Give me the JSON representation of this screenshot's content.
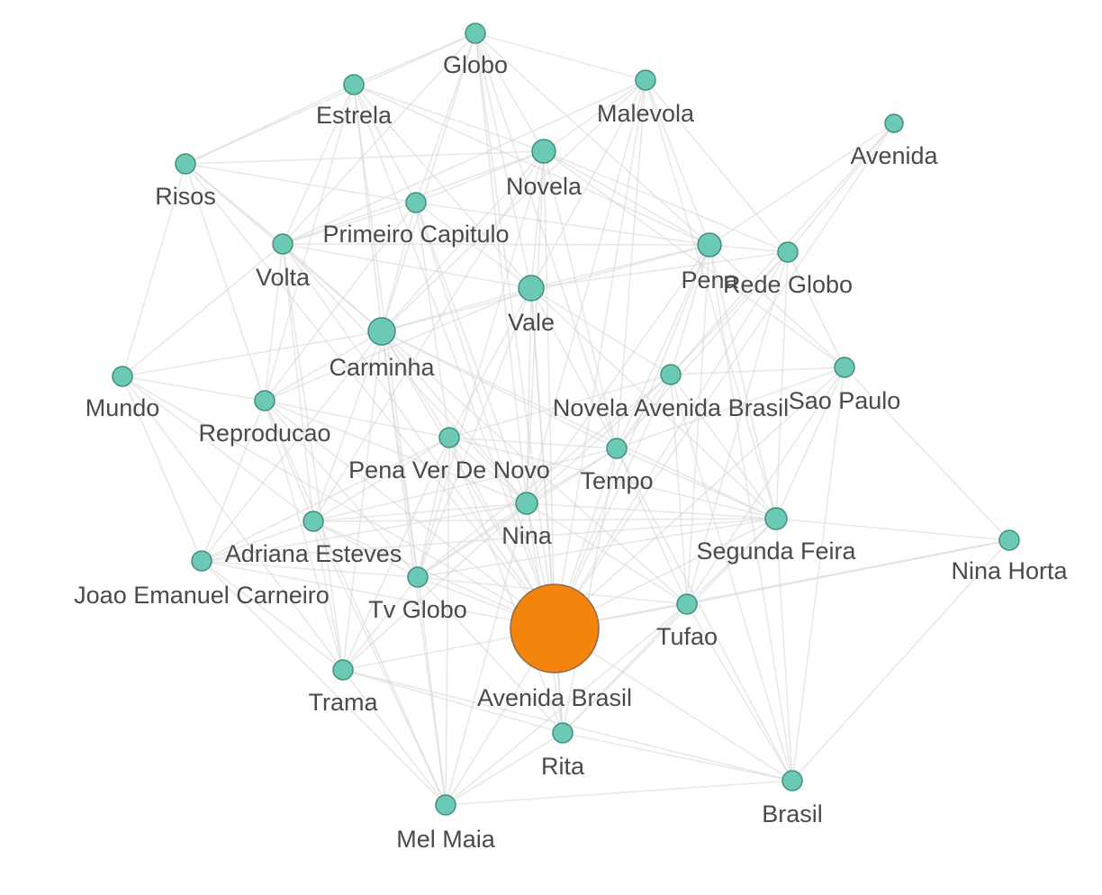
{
  "graph": {
    "colors": {
      "node": "#6cc9b4",
      "node_stroke": "#3f8f80",
      "hub": "#f5840f",
      "edge": "#d6d6d6",
      "label": "#4a4a4a"
    },
    "hub": "Avenida Brasil",
    "nodes": [
      {
        "id": "globo",
        "label": "Globo"
      },
      {
        "id": "estrela",
        "label": "Estrela"
      },
      {
        "id": "malevola",
        "label": "Malevola"
      },
      {
        "id": "avenida",
        "label": "Avenida"
      },
      {
        "id": "risos",
        "label": "Risos"
      },
      {
        "id": "novela",
        "label": "Novela"
      },
      {
        "id": "primeiro-capitulo",
        "label": "Primeiro Capitulo"
      },
      {
        "id": "volta",
        "label": "Volta"
      },
      {
        "id": "pena",
        "label": "Pena"
      },
      {
        "id": "rede-globo",
        "label": "Rede Globo"
      },
      {
        "id": "vale",
        "label": "Vale"
      },
      {
        "id": "carminha",
        "label": "Carminha"
      },
      {
        "id": "mundo",
        "label": "Mundo"
      },
      {
        "id": "reproducao",
        "label": "Reproducao"
      },
      {
        "id": "novela-avenida-brasil",
        "label": "Novela Avenida Brasil"
      },
      {
        "id": "sao-paulo",
        "label": "Sao Paulo"
      },
      {
        "id": "pena-ver-de-novo",
        "label": "Pena Ver De Novo"
      },
      {
        "id": "tempo",
        "label": "Tempo"
      },
      {
        "id": "nina",
        "label": "Nina"
      },
      {
        "id": "adriana-esteves",
        "label": "Adriana Esteves"
      },
      {
        "id": "segunda-feira",
        "label": "Segunda Feira"
      },
      {
        "id": "nina-horta",
        "label": "Nina Horta"
      },
      {
        "id": "joao-emanuel-carneiro",
        "label": "Joao Emanuel Carneiro"
      },
      {
        "id": "tv-globo",
        "label": "Tv Globo"
      },
      {
        "id": "tufao",
        "label": "Tufao"
      },
      {
        "id": "avenida-brasil",
        "label": "Avenida Brasil"
      },
      {
        "id": "trama",
        "label": "Trama"
      },
      {
        "id": "rita",
        "label": "Rita"
      },
      {
        "id": "brasil",
        "label": "Brasil"
      },
      {
        "id": "mel-maia",
        "label": "Mel Maia"
      }
    ],
    "edges": [
      [
        "avenida-brasil",
        "globo"
      ],
      [
        "avenida-brasil",
        "estrela"
      ],
      [
        "avenida-brasil",
        "malevola"
      ],
      [
        "avenida-brasil",
        "risos"
      ],
      [
        "avenida-brasil",
        "novela"
      ],
      [
        "avenida-brasil",
        "primeiro-capitulo"
      ],
      [
        "avenida-brasil",
        "volta"
      ],
      [
        "avenida-brasil",
        "pena"
      ],
      [
        "avenida-brasil",
        "rede-globo"
      ],
      [
        "avenida-brasil",
        "vale"
      ],
      [
        "avenida-brasil",
        "carminha"
      ],
      [
        "avenida-brasil",
        "mundo"
      ],
      [
        "avenida-brasil",
        "reproducao"
      ],
      [
        "avenida-brasil",
        "novela-avenida-brasil"
      ],
      [
        "avenida-brasil",
        "sao-paulo"
      ],
      [
        "avenida-brasil",
        "pena-ver-de-novo"
      ],
      [
        "avenida-brasil",
        "tempo"
      ],
      [
        "avenida-brasil",
        "nina"
      ],
      [
        "avenida-brasil",
        "adriana-esteves"
      ],
      [
        "avenida-brasil",
        "segunda-feira"
      ],
      [
        "avenida-brasil",
        "joao-emanuel-carneiro"
      ],
      [
        "avenida-brasil",
        "tv-globo"
      ],
      [
        "avenida-brasil",
        "tufao"
      ],
      [
        "avenida-brasil",
        "trama"
      ],
      [
        "avenida-brasil",
        "rita"
      ],
      [
        "avenida-brasil",
        "brasil"
      ],
      [
        "avenida-brasil",
        "mel-maia"
      ],
      [
        "avenida-brasil",
        "nina-horta"
      ],
      [
        "avenida-brasil",
        "avenida"
      ],
      [
        "globo",
        "estrela"
      ],
      [
        "globo",
        "malevola"
      ],
      [
        "globo",
        "novela"
      ],
      [
        "globo",
        "vale"
      ],
      [
        "globo",
        "carminha"
      ],
      [
        "globo",
        "pena"
      ],
      [
        "globo",
        "primeiro-capitulo"
      ],
      [
        "globo",
        "volta"
      ],
      [
        "globo",
        "risos"
      ],
      [
        "globo",
        "tempo"
      ],
      [
        "globo",
        "nina"
      ],
      [
        "estrela",
        "risos"
      ],
      [
        "estrela",
        "volta"
      ],
      [
        "estrela",
        "novela"
      ],
      [
        "estrela",
        "vale"
      ],
      [
        "estrela",
        "carminha"
      ],
      [
        "estrela",
        "primeiro-capitulo"
      ],
      [
        "estrela",
        "pena"
      ],
      [
        "estrela",
        "reproducao"
      ],
      [
        "estrela",
        "tv-globo"
      ],
      [
        "malevola",
        "novela"
      ],
      [
        "malevola",
        "pena"
      ],
      [
        "malevola",
        "vale"
      ],
      [
        "malevola",
        "carminha"
      ],
      [
        "malevola",
        "volta"
      ],
      [
        "malevola",
        "rede-globo"
      ],
      [
        "malevola",
        "nina"
      ],
      [
        "malevola",
        "tempo"
      ],
      [
        "malevola",
        "segunda-feira"
      ],
      [
        "avenida",
        "pena"
      ],
      [
        "avenida",
        "rede-globo"
      ],
      [
        "avenida",
        "novela-avenida-brasil"
      ],
      [
        "risos",
        "volta"
      ],
      [
        "risos",
        "carminha"
      ],
      [
        "risos",
        "mundo"
      ],
      [
        "risos",
        "reproducao"
      ],
      [
        "risos",
        "primeiro-capitulo"
      ],
      [
        "risos",
        "novela"
      ],
      [
        "novela",
        "primeiro-capitulo"
      ],
      [
        "novela",
        "vale"
      ],
      [
        "novela",
        "carminha"
      ],
      [
        "novela",
        "pena"
      ],
      [
        "novela",
        "rede-globo"
      ],
      [
        "novela",
        "volta"
      ],
      [
        "novela",
        "nina"
      ],
      [
        "novela",
        "tempo"
      ],
      [
        "novela",
        "adriana-esteves"
      ],
      [
        "novela",
        "tv-globo"
      ],
      [
        "novela",
        "sao-paulo"
      ],
      [
        "primeiro-capitulo",
        "volta"
      ],
      [
        "primeiro-capitulo",
        "vale"
      ],
      [
        "primeiro-capitulo",
        "carminha"
      ],
      [
        "primeiro-capitulo",
        "pena"
      ],
      [
        "primeiro-capitulo",
        "nina"
      ],
      [
        "primeiro-capitulo",
        "pena-ver-de-novo"
      ],
      [
        "primeiro-capitulo",
        "reproducao"
      ],
      [
        "volta",
        "carminha"
      ],
      [
        "volta",
        "mundo"
      ],
      [
        "volta",
        "reproducao"
      ],
      [
        "volta",
        "vale"
      ],
      [
        "volta",
        "nina"
      ],
      [
        "volta",
        "adriana-esteves"
      ],
      [
        "volta",
        "trama"
      ],
      [
        "volta",
        "pena"
      ],
      [
        "pena",
        "rede-globo"
      ],
      [
        "pena",
        "vale"
      ],
      [
        "pena",
        "carminha"
      ],
      [
        "pena",
        "novela-avenida-brasil"
      ],
      [
        "pena",
        "sao-paulo"
      ],
      [
        "pena",
        "tempo"
      ],
      [
        "pena",
        "segunda-feira"
      ],
      [
        "pena",
        "nina"
      ],
      [
        "pena",
        "tufao"
      ],
      [
        "pena",
        "brasil"
      ],
      [
        "rede-globo",
        "sao-paulo"
      ],
      [
        "rede-globo",
        "novela-avenida-brasil"
      ],
      [
        "rede-globo",
        "segunda-feira"
      ],
      [
        "rede-globo",
        "vale"
      ],
      [
        "rede-globo",
        "tempo"
      ],
      [
        "rede-globo",
        "tufao"
      ],
      [
        "vale",
        "carminha"
      ],
      [
        "vale",
        "nina"
      ],
      [
        "vale",
        "tempo"
      ],
      [
        "vale",
        "pena-ver-de-novo"
      ],
      [
        "vale",
        "novela-avenida-brasil"
      ],
      [
        "vale",
        "segunda-feira"
      ],
      [
        "vale",
        "tv-globo"
      ],
      [
        "vale",
        "rita"
      ],
      [
        "vale",
        "reproducao"
      ],
      [
        "carminha",
        "mundo"
      ],
      [
        "carminha",
        "reproducao"
      ],
      [
        "carminha",
        "pena-ver-de-novo"
      ],
      [
        "carminha",
        "nina"
      ],
      [
        "carminha",
        "adriana-esteves"
      ],
      [
        "carminha",
        "tempo"
      ],
      [
        "carminha",
        "tv-globo"
      ],
      [
        "carminha",
        "trama"
      ],
      [
        "carminha",
        "mel-maia"
      ],
      [
        "carminha",
        "joao-emanuel-carneiro"
      ],
      [
        "carminha",
        "segunda-feira"
      ],
      [
        "carminha",
        "tufao"
      ],
      [
        "mundo",
        "reproducao"
      ],
      [
        "mundo",
        "joao-emanuel-carneiro"
      ],
      [
        "mundo",
        "adriana-esteves"
      ],
      [
        "mundo",
        "trama"
      ],
      [
        "reproducao",
        "pena-ver-de-novo"
      ],
      [
        "reproducao",
        "adriana-esteves"
      ],
      [
        "reproducao",
        "joao-emanuel-carneiro"
      ],
      [
        "reproducao",
        "nina"
      ],
      [
        "reproducao",
        "tv-globo"
      ],
      [
        "reproducao",
        "trama"
      ],
      [
        "reproducao",
        "mel-maia"
      ],
      [
        "novela-avenida-brasil",
        "sao-paulo"
      ],
      [
        "novela-avenida-brasil",
        "tempo"
      ],
      [
        "novela-avenida-brasil",
        "segunda-feira"
      ],
      [
        "novela-avenida-brasil",
        "nina"
      ],
      [
        "novela-avenida-brasil",
        "pena-ver-de-novo"
      ],
      [
        "novela-avenida-brasil",
        "tufao"
      ],
      [
        "novela-avenida-brasil",
        "brasil"
      ],
      [
        "novela-avenida-brasil",
        "tv-globo"
      ],
      [
        "sao-paulo",
        "segunda-feira"
      ],
      [
        "sao-paulo",
        "nina-horta"
      ],
      [
        "sao-paulo",
        "brasil"
      ],
      [
        "sao-paulo",
        "tufao"
      ],
      [
        "sao-paulo",
        "tempo"
      ],
      [
        "pena-ver-de-novo",
        "tempo"
      ],
      [
        "pena-ver-de-novo",
        "nina"
      ],
      [
        "pena-ver-de-novo",
        "adriana-esteves"
      ],
      [
        "pena-ver-de-novo",
        "tv-globo"
      ],
      [
        "pena-ver-de-novo",
        "joao-emanuel-carneiro"
      ],
      [
        "pena-ver-de-novo",
        "trama"
      ],
      [
        "pena-ver-de-novo",
        "segunda-feira"
      ],
      [
        "pena-ver-de-novo",
        "rita"
      ],
      [
        "pena-ver-de-novo",
        "mel-maia"
      ],
      [
        "tempo",
        "nina"
      ],
      [
        "tempo",
        "segunda-feira"
      ],
      [
        "tempo",
        "tufao"
      ],
      [
        "tempo",
        "tv-globo"
      ],
      [
        "tempo",
        "rita"
      ],
      [
        "tempo",
        "brasil"
      ],
      [
        "tempo",
        "adriana-esteves"
      ],
      [
        "nina",
        "adriana-esteves"
      ],
      [
        "nina",
        "segunda-feira"
      ],
      [
        "nina",
        "tv-globo"
      ],
      [
        "nina",
        "tufao"
      ],
      [
        "nina",
        "rita"
      ],
      [
        "nina",
        "mel-maia"
      ],
      [
        "nina",
        "trama"
      ],
      [
        "nina",
        "joao-emanuel-carneiro"
      ],
      [
        "adriana-esteves",
        "joao-emanuel-carneiro"
      ],
      [
        "adriana-esteves",
        "tv-globo"
      ],
      [
        "adriana-esteves",
        "trama"
      ],
      [
        "adriana-esteves",
        "segunda-feira"
      ],
      [
        "adriana-esteves",
        "mel-maia"
      ],
      [
        "segunda-feira",
        "nina-horta"
      ],
      [
        "segunda-feira",
        "tufao"
      ],
      [
        "segunda-feira",
        "brasil"
      ],
      [
        "segunda-feira",
        "tv-globo"
      ],
      [
        "segunda-feira",
        "rita"
      ],
      [
        "segunda-feira",
        "joao-emanuel-carneiro"
      ],
      [
        "nina-horta",
        "brasil"
      ],
      [
        "nina-horta",
        "tufao"
      ],
      [
        "joao-emanuel-carneiro",
        "trama"
      ],
      [
        "joao-emanuel-carneiro",
        "mel-maia"
      ],
      [
        "joao-emanuel-carneiro",
        "tv-globo"
      ],
      [
        "tv-globo",
        "trama"
      ],
      [
        "tv-globo",
        "mel-maia"
      ],
      [
        "tv-globo",
        "tufao"
      ],
      [
        "tv-globo",
        "rita"
      ],
      [
        "tufao",
        "rita"
      ],
      [
        "tufao",
        "brasil"
      ],
      [
        "tufao",
        "mel-maia"
      ],
      [
        "trama",
        "mel-maia"
      ],
      [
        "trama",
        "rita"
      ],
      [
        "trama",
        "brasil"
      ],
      [
        "rita",
        "mel-maia"
      ],
      [
        "rita",
        "brasil"
      ],
      [
        "brasil",
        "mel-maia"
      ]
    ]
  }
}
